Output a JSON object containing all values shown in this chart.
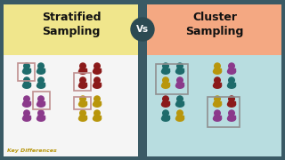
{
  "title_left": "Stratified\nSampling",
  "title_right": "Cluster\nSampling",
  "vs_text": "Vs",
  "watermark": "Key Differences",
  "bg_outer": "#3a5a65",
  "bg_left_header": "#f0e68c",
  "bg_right_header": "#f4a882",
  "bg_left_body": "#f5f5f5",
  "bg_right_body": "#b8dde0",
  "vs_circle_color": "#2c4a52",
  "vs_text_color": "#ffffff",
  "header_text_color": "#111111",
  "watermark_color": "#b8960c",
  "teal": "#1e6b6b",
  "red": "#8b1a1a",
  "purple": "#8b3a8b",
  "gold": "#b8960c",
  "box_border_left": "#c09090",
  "box_border_right": "#909090"
}
